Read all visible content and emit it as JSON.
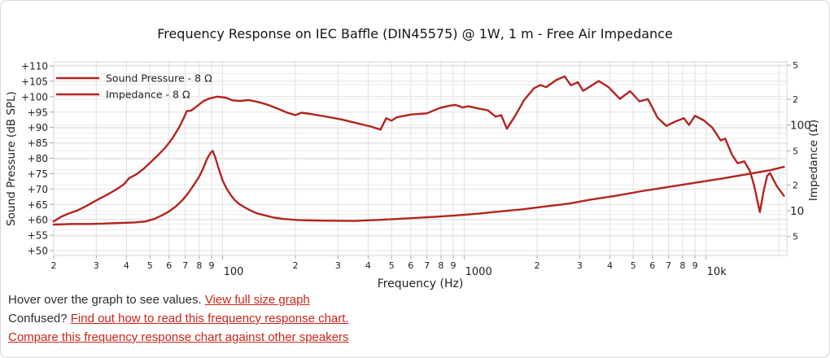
{
  "title": "Frequency Response on IEC Baffle (DIN45575) @ 1W, 1 m - Free Air Impedance",
  "colors": {
    "curve": "#b3241f",
    "link": "#cc2418",
    "grid_major": "#e0e0e0",
    "grid_minor": "#ececec",
    "tick": "#aaaaaa",
    "border": "#d6d6d6",
    "text": "#222222"
  },
  "footer": {
    "hover_text": "Hover over the graph to see values.",
    "view_full_link": "View full size graph",
    "confused_text": "Confused?",
    "how_to_read_link": "Find out how to read this frequency response chart.",
    "compare_link": "Compare this frequency response chart against other speakers"
  },
  "chart_data": {
    "type": "line",
    "title": "Frequency Response on IEC Baffle (DIN45575) @ 1W, 1 m - Free Air Impedance",
    "grid": true,
    "legend": {
      "position": "top-left",
      "entries": [
        "Sound Pressure - 8 Ω",
        "Impedance - 8 Ω"
      ]
    },
    "x_axis": {
      "label": "Frequency (Hz)",
      "scale": "log",
      "min": 20,
      "max": 21600,
      "minor_ticks": [
        {
          "v": 20,
          "label": "2"
        },
        {
          "v": 30,
          "label": "3"
        },
        {
          "v": 40,
          "label": "4"
        },
        {
          "v": 50,
          "label": "5"
        },
        {
          "v": 60,
          "label": "6"
        },
        {
          "v": 70,
          "label": "7"
        },
        {
          "v": 80,
          "label": "8"
        },
        {
          "v": 90,
          "label": "9"
        },
        {
          "v": 200,
          "label": "2"
        },
        {
          "v": 300,
          "label": "3"
        },
        {
          "v": 400,
          "label": "4"
        },
        {
          "v": 500,
          "label": "5"
        },
        {
          "v": 600,
          "label": "6"
        },
        {
          "v": 700,
          "label": "7"
        },
        {
          "v": 800,
          "label": "8"
        },
        {
          "v": 900,
          "label": "9"
        },
        {
          "v": 2000,
          "label": "2"
        },
        {
          "v": 3000,
          "label": "3"
        },
        {
          "v": 4000,
          "label": "4"
        },
        {
          "v": 5000,
          "label": "5"
        },
        {
          "v": 6000,
          "label": "6"
        },
        {
          "v": 7000,
          "label": "7"
        },
        {
          "v": 8000,
          "label": "8"
        },
        {
          "v": 9000,
          "label": "9"
        }
      ],
      "major_ticks": [
        {
          "v": 100,
          "label": "100"
        },
        {
          "v": 1000,
          "label": "1000"
        },
        {
          "v": 10000,
          "label": "10k"
        }
      ],
      "extra_gridlines": [
        20000
      ]
    },
    "y_axis_left": {
      "label": "Sound Pressure (dB SPL)",
      "scale": "linear",
      "min": 50,
      "max": 110,
      "tick_step": 5,
      "ticks": [
        {
          "v": 110,
          "label": "+110"
        },
        {
          "v": 105,
          "label": "+105"
        },
        {
          "v": 100,
          "label": "+100"
        },
        {
          "v": 95,
          "label": "+95"
        },
        {
          "v": 90,
          "label": "+90"
        },
        {
          "v": 85,
          "label": "+85"
        },
        {
          "v": 80,
          "label": "+80"
        },
        {
          "v": 75,
          "label": "+75"
        },
        {
          "v": 70,
          "label": "+70"
        },
        {
          "v": 65,
          "label": "+65"
        },
        {
          "v": 60,
          "label": "+60"
        },
        {
          "v": 55,
          "label": "+55"
        },
        {
          "v": 50,
          "label": "+50"
        }
      ]
    },
    "y_axis_right": {
      "label": "Impedance (Ω)",
      "scale": "log",
      "min": 3,
      "max": 550,
      "ticks": [
        {
          "v": 500,
          "label": "5",
          "major": false
        },
        {
          "v": 200,
          "label": "2",
          "major": false
        },
        {
          "v": 100,
          "label": "100",
          "major": true
        },
        {
          "v": 50,
          "label": "5",
          "major": false
        },
        {
          "v": 20,
          "label": "2",
          "major": false
        },
        {
          "v": 10,
          "label": "10",
          "major": true
        },
        {
          "v": 5,
          "label": "5",
          "major": false
        }
      ],
      "gridline_values": [
        5,
        6,
        7,
        8,
        9,
        10,
        20,
        30,
        40,
        50,
        60,
        70,
        80,
        90,
        100,
        200,
        300,
        400,
        500
      ]
    },
    "series": [
      {
        "name": "Sound Pressure - 8 Ω",
        "axis": "left",
        "unit": "dB SPL",
        "color": "#b3241f",
        "points": [
          [
            20,
            59.5
          ],
          [
            21.5,
            61
          ],
          [
            23,
            62
          ],
          [
            25,
            63
          ],
          [
            27,
            64.3
          ],
          [
            30,
            66.3
          ],
          [
            33,
            68
          ],
          [
            36,
            69.7
          ],
          [
            39,
            71.5
          ],
          [
            41,
            73.5
          ],
          [
            44,
            74.8
          ],
          [
            47,
            76.5
          ],
          [
            50,
            78.5
          ],
          [
            54,
            81
          ],
          [
            58,
            83.5
          ],
          [
            62,
            86.5
          ],
          [
            66,
            90
          ],
          [
            69,
            93
          ],
          [
            71,
            95.3
          ],
          [
            74,
            95.5
          ],
          [
            78,
            96.8
          ],
          [
            83,
            98.5
          ],
          [
            88,
            99.4
          ],
          [
            95,
            100
          ],
          [
            103,
            99.7
          ],
          [
            110,
            98.8
          ],
          [
            118,
            98.6
          ],
          [
            128,
            98.9
          ],
          [
            140,
            98.3
          ],
          [
            152,
            97.5
          ],
          [
            168,
            96.2
          ],
          [
            185,
            94.8
          ],
          [
            200,
            94
          ],
          [
            212,
            94.8
          ],
          [
            230,
            94.4
          ],
          [
            265,
            93.6
          ],
          [
            310,
            92.6
          ],
          [
            360,
            91.4
          ],
          [
            410,
            90.3
          ],
          [
            450,
            89.3
          ],
          [
            475,
            93
          ],
          [
            500,
            92.2
          ],
          [
            525,
            93.3
          ],
          [
            600,
            94.2
          ],
          [
            700,
            94.6
          ],
          [
            790,
            96.3
          ],
          [
            870,
            97.1
          ],
          [
            920,
            97.3
          ],
          [
            985,
            96.5
          ],
          [
            1040,
            96.9
          ],
          [
            1150,
            96.1
          ],
          [
            1250,
            95.6
          ],
          [
            1350,
            93.5
          ],
          [
            1420,
            94
          ],
          [
            1500,
            89.6
          ],
          [
            1620,
            93.7
          ],
          [
            1770,
            99
          ],
          [
            1940,
            102.7
          ],
          [
            2060,
            103.8
          ],
          [
            2180,
            103.1
          ],
          [
            2400,
            105.4
          ],
          [
            2600,
            106.6
          ],
          [
            2760,
            103.7
          ],
          [
            2950,
            104.7
          ],
          [
            3100,
            101.9
          ],
          [
            3300,
            103.2
          ],
          [
            3600,
            105.1
          ],
          [
            3950,
            103.1
          ],
          [
            4400,
            99.3
          ],
          [
            4850,
            101.8
          ],
          [
            5300,
            98.5
          ],
          [
            5750,
            99.2
          ],
          [
            6300,
            93.2
          ],
          [
            6850,
            90.5
          ],
          [
            7500,
            92
          ],
          [
            8100,
            93
          ],
          [
            8500,
            90.8
          ],
          [
            9000,
            93.8
          ],
          [
            9800,
            92.3
          ],
          [
            10600,
            90
          ],
          [
            11500,
            85.8
          ],
          [
            12000,
            86.4
          ],
          [
            12800,
            81.2
          ],
          [
            13500,
            78.4
          ],
          [
            14400,
            79
          ],
          [
            15200,
            75.8
          ],
          [
            15800,
            71.2
          ],
          [
            16700,
            62.5
          ],
          [
            17300,
            69.3
          ],
          [
            17900,
            74.3
          ],
          [
            18400,
            75.2
          ],
          [
            19600,
            71
          ],
          [
            21000,
            67.8
          ]
        ]
      },
      {
        "name": "Impedance - 8 Ω",
        "axis": "right",
        "unit": "Ω",
        "color": "#b3241f",
        "points": [
          [
            20,
            6.9
          ],
          [
            24,
            7
          ],
          [
            28,
            7
          ],
          [
            33,
            7.1
          ],
          [
            38,
            7.2
          ],
          [
            43,
            7.3
          ],
          [
            48,
            7.5
          ],
          [
            52,
            8
          ],
          [
            56,
            8.8
          ],
          [
            60,
            9.8
          ],
          [
            64,
            11.2
          ],
          [
            68,
            13.2
          ],
          [
            72,
            16
          ],
          [
            76,
            20
          ],
          [
            80,
            25
          ],
          [
            83,
            31
          ],
          [
            86,
            40
          ],
          [
            89,
            47
          ],
          [
            91,
            50
          ],
          [
            93,
            43
          ],
          [
            96,
            32
          ],
          [
            100,
            22.5
          ],
          [
            104,
            18
          ],
          [
            108,
            15.3
          ],
          [
            112,
            13.4
          ],
          [
            117,
            12
          ],
          [
            123,
            11
          ],
          [
            130,
            10.1
          ],
          [
            139,
            9.3
          ],
          [
            150,
            8.8
          ],
          [
            163,
            8.3
          ],
          [
            180,
            8
          ],
          [
            205,
            7.8
          ],
          [
            240,
            7.7
          ],
          [
            290,
            7.65
          ],
          [
            350,
            7.6
          ],
          [
            430,
            7.8
          ],
          [
            520,
            8
          ],
          [
            630,
            8.25
          ],
          [
            760,
            8.5
          ],
          [
            920,
            8.8
          ],
          [
            1120,
            9.2
          ],
          [
            1400,
            9.8
          ],
          [
            1750,
            10.4
          ],
          [
            2200,
            11.3
          ],
          [
            2700,
            12.1
          ],
          [
            3300,
            13.4
          ],
          [
            4200,
            14.9
          ],
          [
            5400,
            16.9
          ],
          [
            6900,
            18.8
          ],
          [
            8800,
            21
          ],
          [
            11300,
            23.4
          ],
          [
            14500,
            26.4
          ],
          [
            18500,
            29.8
          ],
          [
            21000,
            32.5
          ]
        ]
      }
    ]
  }
}
